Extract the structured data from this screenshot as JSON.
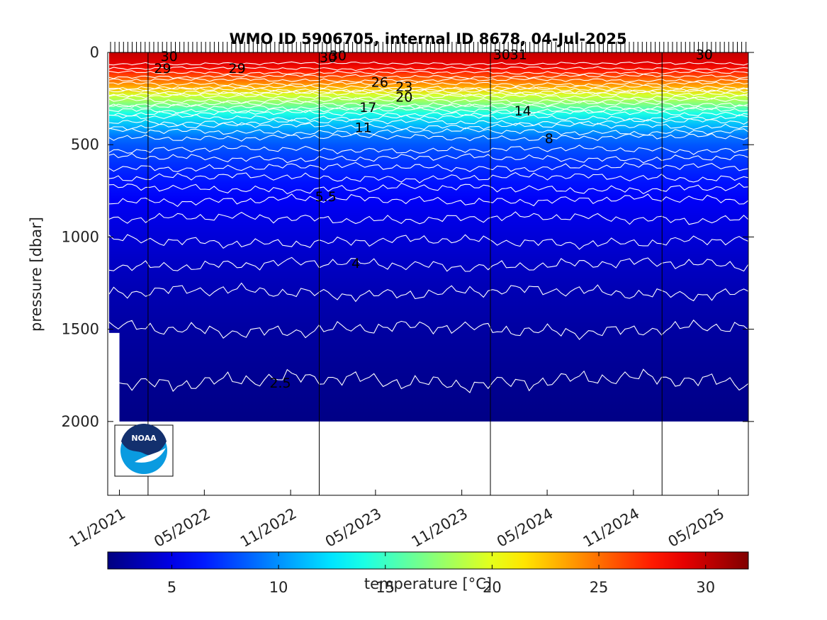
{
  "chart_data": {
    "type": "heatmap",
    "title": "WMO ID 5906705, internal ID 8678, 04-Jul-2025",
    "ylabel": "pressure [dbar]",
    "xlabel": "",
    "y_reversed": true,
    "ylim": [
      0,
      2400
    ],
    "xlim": [
      "2021-10-07",
      "2025-07-04"
    ],
    "y_ticks": [
      0,
      500,
      1000,
      1500,
      2000
    ],
    "y_tick_labels": [
      "0",
      "500",
      "1000",
      "1500",
      "2000"
    ],
    "x_ticks": [
      "2021-11-01",
      "2022-05-01",
      "2022-11-01",
      "2023-05-01",
      "2023-11-01",
      "2024-05-01",
      "2024-11-01",
      "2025-05-01"
    ],
    "x_tick_labels": [
      "11/2021",
      "05/2022",
      "11/2022",
      "05/2023",
      "11/2023",
      "05/2024",
      "11/2024",
      "05/2025"
    ],
    "year_lines": [
      "2022-01-01",
      "2023-01-01",
      "2024-01-01",
      "2025-01-01"
    ],
    "data_extent": {
      "start": "2021-10-10",
      "end": "2025-07-04",
      "max_pressure": 2000
    },
    "colorbar": {
      "label": "temperature [°C]",
      "range": [
        2,
        32
      ],
      "ticks": [
        5,
        10,
        15,
        20,
        25,
        30
      ],
      "tick_labels": [
        "5",
        "10",
        "15",
        "20",
        "25",
        "30"
      ],
      "colormap": "jet"
    },
    "temperature_profile": [
      {
        "pressure": 0,
        "temperature": 30
      },
      {
        "pressure": 60,
        "temperature": 29
      },
      {
        "pressure": 100,
        "temperature": 27.5
      },
      {
        "pressure": 150,
        "temperature": 25
      },
      {
        "pressure": 190,
        "temperature": 23
      },
      {
        "pressure": 230,
        "temperature": 19.5
      },
      {
        "pressure": 280,
        "temperature": 17
      },
      {
        "pressure": 330,
        "temperature": 14
      },
      {
        "pressure": 400,
        "temperature": 11
      },
      {
        "pressure": 460,
        "temperature": 9
      },
      {
        "pressure": 500,
        "temperature": 8.3
      },
      {
        "pressure": 600,
        "temperature": 7.2
      },
      {
        "pressure": 700,
        "temperature": 6.3
      },
      {
        "pressure": 800,
        "temperature": 5.5
      },
      {
        "pressure": 900,
        "temperature": 5
      },
      {
        "pressure": 1000,
        "temperature": 4.6
      },
      {
        "pressure": 1150,
        "temperature": 4
      },
      {
        "pressure": 1300,
        "temperature": 3.5
      },
      {
        "pressure": 1500,
        "temperature": 3
      },
      {
        "pressure": 1780,
        "temperature": 2.5
      },
      {
        "pressure": 2000,
        "temperature": 2.2
      }
    ],
    "contour_levels": [
      29,
      28,
      27,
      26,
      25,
      24,
      23,
      22,
      21,
      20,
      19,
      18,
      17,
      16,
      15,
      14,
      13,
      12,
      11,
      10,
      9,
      8,
      7.5,
      7,
      6.5,
      6,
      5.5,
      5,
      4.5,
      4,
      3.5,
      3,
      2.5
    ],
    "contour_labels": [
      {
        "text": "30",
        "date": "2022-02-15",
        "pressure": 20
      },
      {
        "text": "29",
        "date": "2022-02-01",
        "pressure": 85
      },
      {
        "text": "29",
        "date": "2022-07-10",
        "pressure": 85
      },
      {
        "text": "30",
        "date": "2023-01-20",
        "pressure": 25
      },
      {
        "text": "30",
        "date": "2023-02-10",
        "pressure": 15
      },
      {
        "text": "26",
        "date": "2023-05-10",
        "pressure": 160
      },
      {
        "text": "23",
        "date": "2023-07-01",
        "pressure": 185
      },
      {
        "text": "20",
        "date": "2023-07-01",
        "pressure": 240
      },
      {
        "text": "17",
        "date": "2023-04-15",
        "pressure": 295
      },
      {
        "text": "14",
        "date": "2024-03-10",
        "pressure": 315
      },
      {
        "text": "11",
        "date": "2023-04-05",
        "pressure": 405
      },
      {
        "text": "8",
        "date": "2024-05-05",
        "pressure": 465
      },
      {
        "text": "5.5",
        "date": "2023-01-15",
        "pressure": 780
      },
      {
        "text": "4",
        "date": "2023-03-20",
        "pressure": 1140
      },
      {
        "text": "2.5",
        "date": "2022-10-10",
        "pressure": 1790
      },
      {
        "text": "30",
        "date": "2024-01-25",
        "pressure": 10
      },
      {
        "text": "31",
        "date": "2024-03-01",
        "pressure": 10
      },
      {
        "text": "30",
        "date": "2025-04-01",
        "pressure": 10
      }
    ]
  },
  "logo": {
    "text": "NOAA"
  }
}
